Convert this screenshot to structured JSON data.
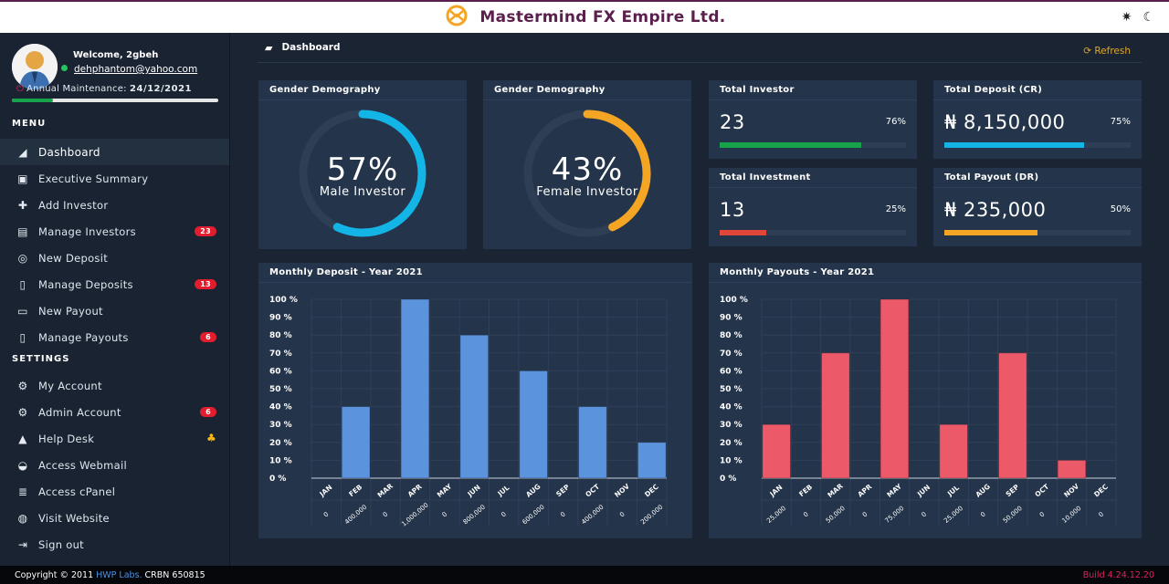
{
  "header": {
    "title": "Mastermind FX Empire Ltd."
  },
  "profile": {
    "welcome": "Welcome, 2gbeh",
    "email": "dehphantom@yahoo.com",
    "maintenance_label": "Annual Maintenance:",
    "maintenance_date": "24/12/2021",
    "maintenance_progress": 0.2
  },
  "menu": {
    "title": "MENU",
    "items": [
      {
        "label": "Dashboard"
      },
      {
        "label": "Executive Summary"
      },
      {
        "label": "Add Investor"
      },
      {
        "label": "Manage Investors",
        "badge": "23"
      },
      {
        "label": "New Deposit"
      },
      {
        "label": "Manage Deposits",
        "badge": "13"
      },
      {
        "label": "New Payout"
      },
      {
        "label": "Manage Payouts",
        "badge": "6"
      }
    ]
  },
  "settings": {
    "title": "SETTINGS",
    "items": [
      {
        "label": "My Account"
      },
      {
        "label": "Admin Account",
        "badge": "6"
      },
      {
        "label": "Help Desk"
      },
      {
        "label": "Access Webmail"
      },
      {
        "label": "Access cPanel"
      },
      {
        "label": "Visit Website"
      },
      {
        "label": "Sign out"
      }
    ]
  },
  "breadcrumb": {
    "title": "Dashboard",
    "refresh": "Refresh"
  },
  "gauges": [
    {
      "title": "Gender Demography",
      "percent_text": "57%",
      "label": "Male Investor",
      "value": 0.57,
      "color": "#12b5e6"
    },
    {
      "title": "Gender Demography",
      "percent_text": "43%",
      "label": "Female Investor",
      "value": 0.43,
      "color": "#f5a524"
    }
  ],
  "stats": [
    {
      "title": "Total Investor",
      "value": "23",
      "percent": "76%",
      "fill": 0.76,
      "color": "#16a34a"
    },
    {
      "title": "Total Deposit (CR)",
      "value": "₦ 8,150,000",
      "percent": "75%",
      "fill": 0.75,
      "color": "#12b5e6"
    },
    {
      "title": "Total Investment",
      "value": "13",
      "percent": "25%",
      "fill": 0.25,
      "color": "#e0463a"
    },
    {
      "title": "Total Payout (DR)",
      "value": "₦ 235,000",
      "percent": "50%",
      "fill": 0.5,
      "color": "#f5a524"
    }
  ],
  "chart_data": [
    {
      "type": "bar",
      "title": "Monthly Deposit - Year 2021",
      "categories": [
        "JAN",
        "FEB",
        "MAR",
        "APR",
        "MAY",
        "JUN",
        "JUL",
        "AUG",
        "SEP",
        "OCT",
        "NOV",
        "DEC"
      ],
      "values": [
        0,
        40,
        0,
        100,
        0,
        80,
        0,
        60,
        0,
        40,
        0,
        20
      ],
      "amounts": [
        "0",
        "400,000",
        "0",
        "1,000,000",
        "0",
        "800,000",
        "0",
        "600,000",
        "0",
        "400,000",
        "0",
        "200,000"
      ],
      "yticks": [
        "100 %",
        "90 %",
        "80 %",
        "70 %",
        "60 %",
        "50 %",
        "40 %",
        "30 %",
        "20 %",
        "10 %",
        "0 %"
      ],
      "ylim": [
        0,
        100
      ],
      "color": "#5b93dd"
    },
    {
      "type": "bar",
      "title": "Monthly Payouts - Year 2021",
      "categories": [
        "JAN",
        "FEB",
        "MAR",
        "APR",
        "MAY",
        "JUN",
        "JUL",
        "AUG",
        "SEP",
        "OCT",
        "NOV",
        "DEC"
      ],
      "values": [
        30,
        0,
        70,
        0,
        100,
        0,
        30,
        0,
        70,
        0,
        10,
        0
      ],
      "amounts": [
        "25,000",
        "0",
        "50,000",
        "0",
        "75,000",
        "0",
        "25,000",
        "0",
        "50,000",
        "0",
        "10,000",
        "0"
      ],
      "yticks": [
        "100 %",
        "90 %",
        "80 %",
        "70 %",
        "60 %",
        "50 %",
        "40 %",
        "30 %",
        "20 %",
        "10 %",
        "0 %"
      ],
      "ylim": [
        0,
        100
      ],
      "color": "#ec5a6a"
    }
  ],
  "footer": {
    "copyright": "Copyright © 2011",
    "lab": "HWP Labs.",
    "rcn": "CRBN 650815",
    "build": "Build 4.24.12.20"
  }
}
